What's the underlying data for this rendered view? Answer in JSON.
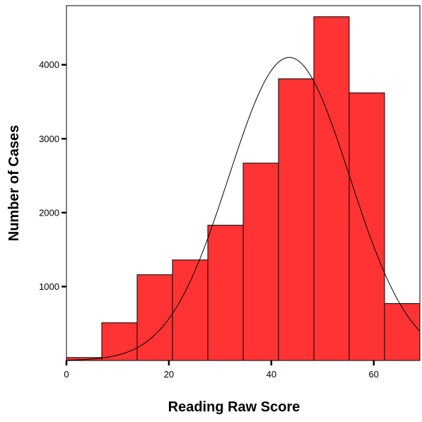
{
  "chart_data": {
    "type": "bar",
    "subtype": "histogram",
    "title": "",
    "xlabel": "Reading Raw Score",
    "ylabel": "Number of Cases",
    "xlim": [
      0,
      69
    ],
    "ylim": [
      0,
      4800
    ],
    "x_ticks": [
      {
        "value": 0,
        "label": "0"
      },
      {
        "value": 20,
        "label": "20"
      },
      {
        "value": 40,
        "label": "40"
      },
      {
        "value": 60,
        "label": "60"
      }
    ],
    "y_ticks": [
      {
        "value": 1000,
        "label": "1000"
      },
      {
        "value": 2000,
        "label": "2000"
      },
      {
        "value": 3000,
        "label": "3000"
      },
      {
        "value": 4000,
        "label": "4000"
      }
    ],
    "bins": [
      {
        "start": 0.0,
        "end": 6.9,
        "count": 40
      },
      {
        "start": 6.9,
        "end": 13.8,
        "count": 510
      },
      {
        "start": 13.8,
        "end": 20.7,
        "count": 1160
      },
      {
        "start": 20.7,
        "end": 27.6,
        "count": 1360
      },
      {
        "start": 27.6,
        "end": 34.5,
        "count": 1830
      },
      {
        "start": 34.5,
        "end": 41.4,
        "count": 2670
      },
      {
        "start": 41.4,
        "end": 48.3,
        "count": 3810
      },
      {
        "start": 48.3,
        "end": 55.2,
        "count": 4650
      },
      {
        "start": 55.2,
        "end": 62.1,
        "count": 3620
      },
      {
        "start": 62.1,
        "end": 69.0,
        "count": 770
      }
    ],
    "normal_curve": {
      "mean": 43.5,
      "peak": 4100,
      "sd": 11.8
    },
    "colors": {
      "bar_fill": "#ff3333",
      "bar_stroke": "#000000",
      "curve": "#000000"
    },
    "grid": false,
    "legend": "none"
  }
}
